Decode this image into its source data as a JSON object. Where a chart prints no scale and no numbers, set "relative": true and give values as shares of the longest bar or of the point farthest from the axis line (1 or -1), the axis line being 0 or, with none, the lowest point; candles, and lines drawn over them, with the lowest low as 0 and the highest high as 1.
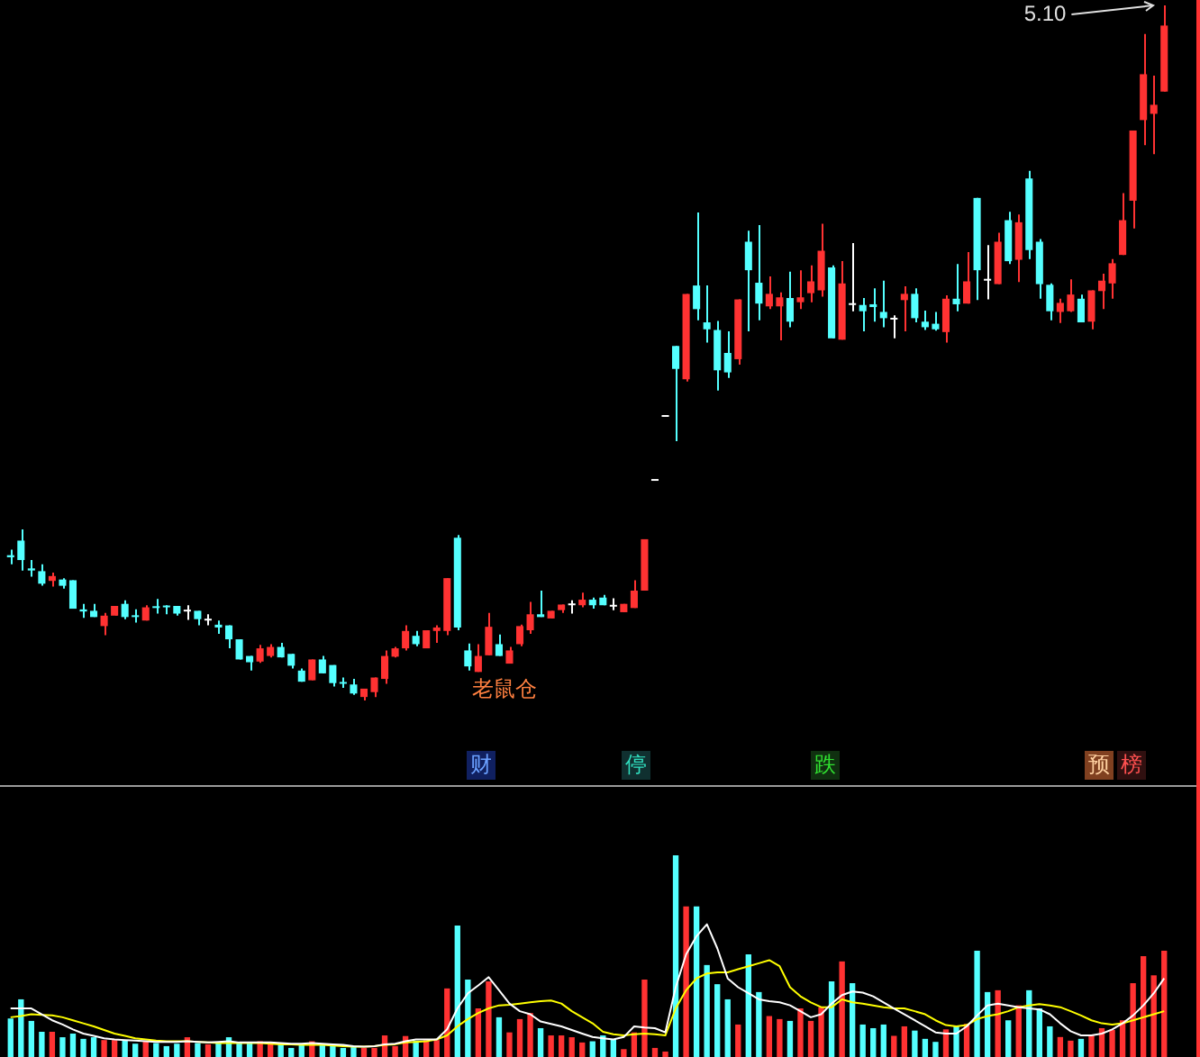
{
  "chart_data": [
    {
      "type": "candlestick",
      "relative": true,
      "tick_labels": false,
      "legend": false,
      "categories": [
        null,
        null,
        null,
        null,
        null,
        null,
        null,
        null,
        null,
        null,
        null,
        null,
        null,
        null,
        null,
        null,
        null,
        null,
        null,
        null,
        null,
        null,
        null,
        null,
        null,
        null,
        null,
        null,
        null,
        null,
        null,
        null,
        null,
        null,
        null,
        null,
        null,
        null,
        null,
        null,
        null,
        null,
        null,
        null,
        null,
        null,
        null,
        null,
        null,
        null,
        null,
        null,
        null,
        null,
        null,
        null,
        null,
        null,
        null,
        null,
        null,
        null,
        null,
        null,
        null,
        null,
        null,
        null,
        null,
        null,
        null,
        null,
        null,
        null,
        null,
        null,
        null,
        null,
        null,
        null,
        null,
        null,
        null,
        null,
        null,
        null,
        null,
        null,
        null,
        null,
        null,
        null,
        null,
        null,
        null,
        null,
        null,
        null,
        null,
        null,
        null,
        null,
        null,
        null,
        null,
        null,
        null,
        null,
        null,
        null,
        null,
        null
      ],
      "ohlc": [
        [
          0.209,
          0.217,
          0.196,
          0.206
        ],
        [
          0.23,
          0.246,
          0.187,
          0.202
        ],
        [
          0.19,
          0.202,
          0.178,
          0.187
        ],
        [
          0.186,
          0.196,
          0.165,
          0.168
        ],
        [
          0.172,
          0.184,
          0.164,
          0.179
        ],
        [
          0.174,
          0.176,
          0.161,
          0.165
        ],
        [
          0.173,
          0.173,
          0.132,
          0.132
        ],
        [
          0.131,
          0.139,
          0.119,
          0.128
        ],
        [
          0.129,
          0.139,
          0.12,
          0.12
        ],
        [
          0.107,
          0.126,
          0.094,
          0.122
        ],
        [
          0.122,
          0.136,
          0.122,
          0.136
        ],
        [
          0.139,
          0.144,
          0.117,
          0.12
        ],
        [
          0.122,
          0.131,
          0.112,
          0.12
        ],
        [
          0.115,
          0.137,
          0.115,
          0.134
        ],
        [
          0.135,
          0.146,
          0.125,
          0.133
        ],
        [
          0.136,
          0.137,
          0.124,
          0.134
        ],
        [
          0.136,
          0.136,
          0.122,
          0.125
        ],
        [
          0.128,
          0.137,
          0.116,
          0.128
        ],
        [
          0.129,
          0.129,
          0.108,
          0.117
        ],
        [
          0.115,
          0.124,
          0.108,
          0.115
        ],
        [
          0.109,
          0.115,
          0.096,
          0.105
        ],
        [
          0.108,
          0.108,
          0.075,
          0.088
        ],
        [
          0.088,
          0.088,
          0.059,
          0.059
        ],
        [
          0.064,
          0.064,
          0.043,
          0.055
        ],
        [
          0.056,
          0.08,
          0.054,
          0.075
        ],
        [
          0.064,
          0.081,
          0.062,
          0.077
        ],
        [
          0.077,
          0.083,
          0.062,
          0.062
        ],
        [
          0.067,
          0.067,
          0.046,
          0.05
        ],
        [
          0.043,
          0.046,
          0.027,
          0.027
        ],
        [
          0.029,
          0.059,
          0.029,
          0.059
        ],
        [
          0.059,
          0.064,
          0.039,
          0.039
        ],
        [
          0.051,
          0.051,
          0.02,
          0.025
        ],
        [
          0.026,
          0.033,
          0.018,
          0.024
        ],
        [
          0.023,
          0.031,
          0.008,
          0.01
        ],
        [
          0.005,
          0.017,
          0,
          0.017
        ],
        [
          0.012,
          0.033,
          0.005,
          0.033
        ],
        [
          0.031,
          0.072,
          0.024,
          0.064
        ],
        [
          0.063,
          0.077,
          0.062,
          0.075
        ],
        [
          0.075,
          0.108,
          0.072,
          0.1
        ],
        [
          0.093,
          0.1,
          0.078,
          0.081
        ],
        [
          0.075,
          0.101,
          0.075,
          0.101
        ],
        [
          0.1,
          0.108,
          0.083,
          0.105
        ],
        [
          0.1,
          0.176,
          0.094,
          0.176
        ],
        [
          0.234,
          0.238,
          0.101,
          0.105
        ],
        [
          0.072,
          0.082,
          0.043,
          0.049
        ],
        [
          0.041,
          0.081,
          0.041,
          0.064
        ],
        [
          0.065,
          0.126,
          0.065,
          0.106
        ],
        [
          0.081,
          0.095,
          0.064,
          0.064
        ],
        [
          0.053,
          0.077,
          0.053,
          0.072
        ],
        [
          0.081,
          0.109,
          0.078,
          0.107
        ],
        [
          0.101,
          0.142,
          0.096,
          0.124
        ],
        [
          0.124,
          0.158,
          0.12,
          0.12
        ],
        [
          0.118,
          0.129,
          0.118,
          0.129
        ],
        [
          0.13,
          0.138,
          0.126,
          0.138
        ],
        [
          0.137,
          0.144,
          0.125,
          0.137
        ],
        [
          0.137,
          0.155,
          0.134,
          0.145
        ],
        [
          0.145,
          0.148,
          0.132,
          0.137
        ],
        [
          0.148,
          0.152,
          0.137,
          0.137
        ],
        [
          0.135,
          0.147,
          0.13,
          0.135
        ],
        [
          0.127,
          0.139,
          0.127,
          0.139
        ],
        [
          0.133,
          0.173,
          0.133,
          0.158
        ],
        [
          0.158,
          0.232,
          0.158,
          0.232
        ],
        [
          0.316,
          0.316,
          0.316,
          0.316
        ],
        [
          0.408,
          0.408,
          0.408,
          0.408
        ],
        [
          0.51,
          0.51,
          0.373,
          0.477
        ],
        [
          0.462,
          0.585,
          0.459,
          0.585
        ],
        [
          0.597,
          0.702,
          0.547,
          0.563
        ],
        [
          0.544,
          0.597,
          0.515,
          0.534
        ],
        [
          0.533,
          0.546,
          0.446,
          0.475
        ],
        [
          0.5,
          0.531,
          0.464,
          0.472
        ],
        [
          0.491,
          0.577,
          0.483,
          0.577
        ],
        [
          0.66,
          0.676,
          0.531,
          0.619
        ],
        [
          0.601,
          0.684,
          0.547,
          0.571
        ],
        [
          0.567,
          0.61,
          0.563,
          0.585
        ],
        [
          0.567,
          0.587,
          0.518,
          0.58
        ],
        [
          0.579,
          0.617,
          0.537,
          0.545
        ],
        [
          0.573,
          0.619,
          0.563,
          0.58
        ],
        [
          0.586,
          0.626,
          0.573,
          0.603
        ],
        [
          0.59,
          0.686,
          0.581,
          0.647
        ],
        [
          0.623,
          0.626,
          0.521,
          0.521
        ],
        [
          0.519,
          0.632,
          0.519,
          0.6
        ],
        [
          0.569,
          0.658,
          0.56,
          0.569
        ],
        [
          0.569,
          0.579,
          0.531,
          0.56
        ],
        [
          0.57,
          0.593,
          0.545,
          0.566
        ],
        [
          0.559,
          0.604,
          0.537,
          0.55
        ],
        [
          0.548,
          0.554,
          0.521,
          0.548
        ],
        [
          0.576,
          0.596,
          0.531,
          0.585
        ],
        [
          0.585,
          0.593,
          0.544,
          0.55
        ],
        [
          0.545,
          0.561,
          0.533,
          0.537
        ],
        [
          0.542,
          0.559,
          0.532,
          0.534
        ],
        [
          0.53,
          0.583,
          0.515,
          0.578
        ],
        [
          0.578,
          0.628,
          0.56,
          0.57
        ],
        [
          0.571,
          0.645,
          0.571,
          0.603
        ],
        [
          0.723,
          0.723,
          0.576,
          0.619
        ],
        [
          0.604,
          0.655,
          0.577,
          0.604
        ],
        [
          0.599,
          0.673,
          0.599,
          0.66
        ],
        [
          0.691,
          0.703,
          0.628,
          0.632
        ],
        [
          0.634,
          0.699,
          0.602,
          0.688
        ],
        [
          0.751,
          0.762,
          0.635,
          0.648
        ],
        [
          0.66,
          0.664,
          0.578,
          0.599
        ],
        [
          0.598,
          0.6,
          0.547,
          0.56
        ],
        [
          0.559,
          0.578,
          0.543,
          0.572
        ],
        [
          0.56,
          0.606,
          0.559,
          0.584
        ],
        [
          0.578,
          0.584,
          0.544,
          0.544
        ],
        [
          0.545,
          0.59,
          0.534,
          0.59
        ],
        [
          0.589,
          0.614,
          0.563,
          0.604
        ],
        [
          0.6,
          0.635,
          0.578,
          0.629
        ],
        [
          0.641,
          0.73,
          0.641,
          0.691
        ],
        [
          0.719,
          0.82,
          0.679,
          0.82
        ],
        [
          0.835,
          0.959,
          0.799,
          0.901
        ],
        [
          0.844,
          0.899,
          0.786,
          0.857
        ],
        [
          0.876,
          1,
          0.876,
          0.971
        ]
      ],
      "colors": [
        "#54ffff",
        "#54ffff",
        "#54ffff",
        "#54ffff",
        "#ff3232",
        "#54ffff",
        "#54ffff",
        "#54ffff",
        "#54ffff",
        "#ff3232",
        "#ff3232",
        "#54ffff",
        "#54ffff",
        "#ff3232",
        "#54ffff",
        "#54ffff",
        "#54ffff",
        "#ffffff",
        "#54ffff",
        "#ffffff",
        "#54ffff",
        "#54ffff",
        "#54ffff",
        "#54ffff",
        "#ff3232",
        "#ff3232",
        "#54ffff",
        "#54ffff",
        "#54ffff",
        "#ff3232",
        "#54ffff",
        "#54ffff",
        "#54ffff",
        "#54ffff",
        "#ff3232",
        "#ff3232",
        "#ff3232",
        "#ff3232",
        "#ff3232",
        "#54ffff",
        "#ff3232",
        "#ff3232",
        "#ff3232",
        "#54ffff",
        "#54ffff",
        "#ff3232",
        "#ff3232",
        "#54ffff",
        "#ff3232",
        "#ff3232",
        "#ff3232",
        "#54ffff",
        "#ff3232",
        "#ff3232",
        "#ffffff",
        "#ff3232",
        "#54ffff",
        "#54ffff",
        "#ffffff",
        "#ff3232",
        "#ff3232",
        "#ff3232",
        "#ffffff",
        "#ffffff",
        "#54ffff",
        "#ff3232",
        "#54ffff",
        "#54ffff",
        "#54ffff",
        "#54ffff",
        "#ff3232",
        "#54ffff",
        "#54ffff",
        "#ff3232",
        "#ff3232",
        "#54ffff",
        "#ff3232",
        "#ff3232",
        "#ff3232",
        "#54ffff",
        "#ff3232",
        "#ffffff",
        "#54ffff",
        "#54ffff",
        "#54ffff",
        "#ffffff",
        "#ff3232",
        "#54ffff",
        "#54ffff",
        "#54ffff",
        "#ff3232",
        "#54ffff",
        "#ff3232",
        "#54ffff",
        "#ffffff",
        "#ff3232",
        "#54ffff",
        "#ff3232",
        "#54ffff",
        "#54ffff",
        "#54ffff",
        "#ff3232",
        "#ff3232",
        "#54ffff",
        "#ff3232",
        "#ff3232",
        "#ff3232",
        "#ff3232",
        "#ff3232",
        "#ff3232",
        "#ff3232",
        "#ff3232"
      ],
      "annotations": [
        "5.10",
        "老鼠仓",
        "财",
        "停",
        "跌",
        "预",
        "榜"
      ]
    },
    {
      "type": "bar",
      "relative": true,
      "tick_labels": false,
      "legend": false,
      "categories": [
        null,
        null,
        null,
        null,
        null,
        null,
        null,
        null,
        null,
        null,
        null,
        null,
        null,
        null,
        null,
        null,
        null,
        null,
        null,
        null,
        null,
        null,
        null,
        null,
        null,
        null,
        null,
        null,
        null,
        null,
        null,
        null,
        null,
        null,
        null,
        null,
        null,
        null,
        null,
        null,
        null,
        null,
        null,
        null,
        null,
        null,
        null,
        null,
        null,
        null,
        null,
        null,
        null,
        null,
        null,
        null,
        null,
        null,
        null,
        null,
        null,
        null,
        null,
        null,
        null,
        null,
        null,
        null,
        null,
        null,
        null,
        null,
        null,
        null,
        null,
        null,
        null,
        null,
        null,
        null,
        null,
        null,
        null,
        null,
        null,
        null,
        null,
        null,
        null,
        null,
        null,
        null,
        null,
        null,
        null,
        null,
        null,
        null,
        null,
        null,
        null,
        null,
        null,
        null,
        null,
        null,
        null,
        null,
        null,
        null,
        null,
        null
      ],
      "series": [
        {
          "type": "bar",
          "values": [
            0.191,
            0.286,
            0.179,
            0.125,
            0.125,
            0.098,
            0.116,
            0.09,
            0.098,
            0.084,
            0.084,
            0.084,
            0.066,
            0.078,
            0.069,
            0.054,
            0.066,
            0.098,
            0.069,
            0.063,
            0.069,
            0.098,
            0.069,
            0.069,
            0.078,
            0.069,
            0.063,
            0.045,
            0.06,
            0.078,
            0.063,
            0.054,
            0.045,
            0.054,
            0.045,
            0.045,
            0.107,
            0.054,
            0.104,
            0.081,
            0.084,
            0.084,
            0.34,
            0.652,
            0.384,
            0.241,
            0.375,
            0.197,
            0.122,
            0.188,
            0.218,
            0.143,
            0.107,
            0.107,
            0.098,
            0.072,
            0.078,
            0.107,
            0.087,
            0.039,
            0.122,
            0.384,
            0.045,
            0.027,
            1,
            0.747,
            0.747,
            0.456,
            0.361,
            0.286,
            0.161,
            0.509,
            0.322,
            0.203,
            0.188,
            0.179,
            0.241,
            0.179,
            0.247,
            0.375,
            0.474,
            0.366,
            0.161,
            0.143,
            0.161,
            0.105,
            0.152,
            0.131,
            0.09,
            0.075,
            0.137,
            0.152,
            0.164,
            0.527,
            0.322,
            0.331,
            0.182,
            0.256,
            0.331,
            0.241,
            0.152,
            0.099,
            0.081,
            0.09,
            0.107,
            0.143,
            0.134,
            0.182,
            0.366,
            0.5,
            0.405,
            0.527
          ],
          "colors": [
            "#54ffff",
            "#54ffff",
            "#54ffff",
            "#54ffff",
            "#ff3232",
            "#54ffff",
            "#54ffff",
            "#54ffff",
            "#54ffff",
            "#ff3232",
            "#ff3232",
            "#54ffff",
            "#54ffff",
            "#ff3232",
            "#54ffff",
            "#54ffff",
            "#54ffff",
            "#ff3232",
            "#54ffff",
            "#ff3232",
            "#54ffff",
            "#54ffff",
            "#54ffff",
            "#54ffff",
            "#ff3232",
            "#ff3232",
            "#54ffff",
            "#54ffff",
            "#54ffff",
            "#ff3232",
            "#54ffff",
            "#54ffff",
            "#54ffff",
            "#54ffff",
            "#ff3232",
            "#ff3232",
            "#ff3232",
            "#ff3232",
            "#ff3232",
            "#54ffff",
            "#ff3232",
            "#ff3232",
            "#ff3232",
            "#54ffff",
            "#54ffff",
            "#ff3232",
            "#ff3232",
            "#54ffff",
            "#ff3232",
            "#ff3232",
            "#ff3232",
            "#54ffff",
            "#ff3232",
            "#ff3232",
            "#ff3232",
            "#ff3232",
            "#54ffff",
            "#54ffff",
            "#54ffff",
            "#ff3232",
            "#ff3232",
            "#ff3232",
            "#ff3232",
            "#ff3232",
            "#54ffff",
            "#ff3232",
            "#54ffff",
            "#54ffff",
            "#54ffff",
            "#54ffff",
            "#ff3232",
            "#54ffff",
            "#54ffff",
            "#ff3232",
            "#ff3232",
            "#54ffff",
            "#ff3232",
            "#ff3232",
            "#ff3232",
            "#54ffff",
            "#ff3232",
            "#54ffff",
            "#54ffff",
            "#54ffff",
            "#54ffff",
            "#ff3232",
            "#ff3232",
            "#54ffff",
            "#54ffff",
            "#54ffff",
            "#ff3232",
            "#54ffff",
            "#ff3232",
            "#54ffff",
            "#54ffff",
            "#ff3232",
            "#54ffff",
            "#ff3232",
            "#54ffff",
            "#54ffff",
            "#54ffff",
            "#ff3232",
            "#ff3232",
            "#54ffff",
            "#ff3232",
            "#ff3232",
            "#ff3232",
            "#ff3232",
            "#ff3232",
            "#ff3232",
            "#ff3232",
            "#ff3232"
          ]
        },
        {
          "type": "line",
          "color": "#ffffff",
          "values": [
            0.241,
            0.241,
            0.241,
            0.212,
            0.182,
            0.161,
            0.137,
            0.116,
            0.105,
            0.093,
            0.087,
            0.084,
            0.081,
            0.078,
            0.075,
            0.075,
            0.075,
            0.078,
            0.075,
            0.072,
            0.075,
            0.078,
            0.072,
            0.072,
            0.072,
            0.072,
            0.069,
            0.066,
            0.066,
            0.069,
            0.066,
            0.063,
            0.06,
            0.054,
            0.051,
            0.054,
            0.063,
            0.066,
            0.078,
            0.087,
            0.087,
            0.087,
            0.137,
            0.241,
            0.316,
            0.355,
            0.396,
            0.331,
            0.265,
            0.227,
            0.212,
            0.176,
            0.164,
            0.152,
            0.134,
            0.116,
            0.099,
            0.093,
            0.087,
            0.099,
            0.152,
            0.146,
            0.143,
            0.122,
            0.346,
            0.509,
            0.599,
            0.658,
            0.539,
            0.39,
            0.346,
            0.316,
            0.286,
            0.277,
            0.271,
            0.256,
            0.227,
            0.197,
            0.212,
            0.265,
            0.307,
            0.325,
            0.319,
            0.301,
            0.271,
            0.241,
            0.212,
            0.182,
            0.152,
            0.122,
            0.116,
            0.116,
            0.152,
            0.206,
            0.256,
            0.265,
            0.256,
            0.247,
            0.241,
            0.236,
            0.212,
            0.167,
            0.128,
            0.107,
            0.107,
            0.116,
            0.137,
            0.167,
            0.206,
            0.256,
            0.316,
            0.39
          ]
        },
        {
          "type": "line",
          "color": "#ffff00",
          "values": [
            0.197,
            0.203,
            0.212,
            0.209,
            0.206,
            0.197,
            0.182,
            0.167,
            0.152,
            0.134,
            0.116,
            0.105,
            0.093,
            0.087,
            0.081,
            0.078,
            0.078,
            0.078,
            0.075,
            0.072,
            0.069,
            0.069,
            0.069,
            0.069,
            0.069,
            0.066,
            0.063,
            0.063,
            0.06,
            0.06,
            0.06,
            0.057,
            0.054,
            0.051,
            0.051,
            0.054,
            0.06,
            0.063,
            0.072,
            0.075,
            0.078,
            0.087,
            0.107,
            0.152,
            0.188,
            0.218,
            0.241,
            0.256,
            0.259,
            0.265,
            0.271,
            0.277,
            0.28,
            0.265,
            0.227,
            0.197,
            0.167,
            0.125,
            0.113,
            0.107,
            0.113,
            0.116,
            0.113,
            0.107,
            0.241,
            0.331,
            0.39,
            0.414,
            0.42,
            0.42,
            0.435,
            0.45,
            0.465,
            0.48,
            0.45,
            0.346,
            0.301,
            0.271,
            0.247,
            0.247,
            0.286,
            0.271,
            0.265,
            0.256,
            0.247,
            0.241,
            0.241,
            0.227,
            0.212,
            0.182,
            0.158,
            0.152,
            0.158,
            0.188,
            0.203,
            0.212,
            0.227,
            0.247,
            0.256,
            0.262,
            0.256,
            0.247,
            0.227,
            0.206,
            0.182,
            0.167,
            0.161,
            0.167,
            0.182,
            0.197,
            0.212,
            0.227
          ]
        }
      ]
    }
  ]
}
